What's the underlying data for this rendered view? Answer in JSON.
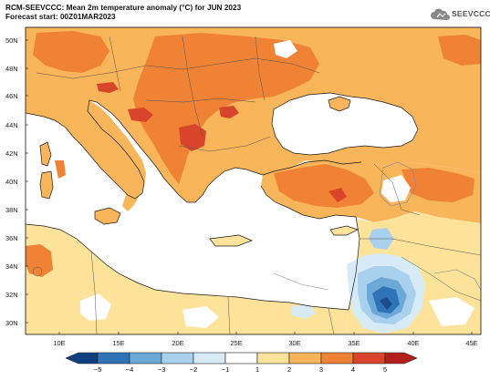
{
  "header": {
    "title_line1": "RCM-SEEVCCC: Mean 2m temperature anomaly (°C) for JUN 2023",
    "title_line2": "Forecast start: 00Z01MAR2023",
    "logo_text": "SEEVCCC",
    "logo_icon": "cloud-icon"
  },
  "map": {
    "lat_labels": [
      "50N",
      "48N",
      "46N",
      "44N",
      "42N",
      "40N",
      "38N",
      "36N",
      "34N",
      "32N",
      "30N"
    ],
    "lon_labels": [
      "10E",
      "15E",
      "20E",
      "25E",
      "30E",
      "35E",
      "40E",
      "45E"
    ],
    "colors": {
      "sea": "#ffffff",
      "land_neutral": "#ffffff",
      "anom_1_2": "#fde29a",
      "anom_2_3": "#f9b55a",
      "anom_3_4": "#f08236",
      "anom_4_5": "#d8452a",
      "neg_1_0": "#d7ebf7",
      "neg_2_1": "#a9d0ec",
      "neg_3_2": "#6aa9d8",
      "neg_4_3": "#2f74b6",
      "neg_5_4": "#1b4c8c",
      "coastline": "#1a1a1a",
      "borders": "#444444"
    }
  },
  "colorbar": {
    "labels": [
      "−5",
      "−4",
      "−3",
      "−2",
      "−1",
      "1",
      "2",
      "3",
      "4",
      "5"
    ],
    "colors": [
      "#0f3f7f",
      "#2f74b6",
      "#6aa9d8",
      "#a9d0ec",
      "#d7ebf7",
      "#ffffff",
      "#fde29a",
      "#f9b55a",
      "#f08236",
      "#d8452a",
      "#b3201c"
    ]
  }
}
